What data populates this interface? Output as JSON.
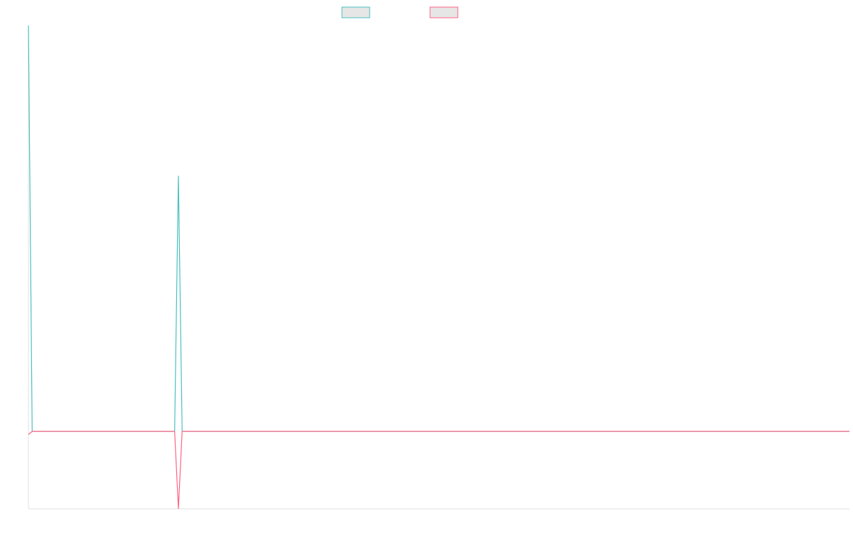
{
  "chart_data": {
    "type": "line",
    "ylim": [
      -1,
      5.24
    ],
    "series": [
      {
        "color": "#4bc0c0",
        "values": [
          5.24,
          0,
          0,
          0,
          0,
          0,
          0,
          0,
          0,
          0,
          0,
          0,
          0,
          0,
          0,
          0,
          0,
          0,
          0,
          0,
          0,
          0,
          0,
          0,
          0,
          0,
          0,
          0,
          0,
          0,
          0,
          0,
          0,
          0,
          0,
          0,
          0,
          0,
          0,
          0,
          3.3,
          0,
          0,
          0,
          0,
          0,
          0,
          0,
          0,
          0,
          0,
          0,
          0,
          0,
          0,
          0,
          0,
          0,
          0,
          0,
          0,
          0,
          0,
          0,
          0,
          0,
          0,
          0,
          0,
          0,
          0,
          0,
          0,
          0,
          0,
          0,
          0,
          0,
          0,
          0,
          0,
          0,
          0,
          0,
          0,
          0,
          0,
          0,
          0,
          0,
          0,
          0,
          0,
          0,
          0,
          0,
          0,
          0,
          0,
          0,
          0,
          0,
          0,
          0,
          0,
          0,
          0,
          0,
          0,
          0,
          0,
          0,
          0,
          0,
          0,
          0,
          0,
          0,
          0,
          0,
          0,
          0,
          0,
          0,
          0,
          0,
          0,
          0,
          0,
          0,
          0,
          0,
          0,
          0,
          0,
          0,
          0,
          0,
          0,
          0,
          0,
          0,
          0,
          0,
          0,
          0,
          0,
          0,
          0,
          0,
          0,
          0,
          0,
          0,
          0,
          0,
          0,
          0,
          0,
          0,
          0,
          0,
          0,
          0,
          0,
          0,
          0,
          0,
          0,
          0,
          0,
          0,
          0,
          0,
          0,
          0,
          0,
          0,
          0,
          0,
          0,
          0,
          0,
          0,
          0,
          0,
          0,
          0,
          0,
          0,
          0,
          0,
          0,
          0,
          0,
          0,
          0,
          0,
          0,
          0,
          0,
          0,
          0,
          0,
          0,
          0,
          0,
          0,
          0,
          0,
          0,
          0,
          0,
          0,
          0,
          0,
          0,
          0,
          0,
          0
        ]
      },
      {
        "color": "#ff6384",
        "values": [
          -0.04,
          0,
          0,
          0,
          0,
          0,
          0,
          0,
          0,
          0,
          0,
          0,
          0,
          0,
          0,
          0,
          0,
          0,
          0,
          0,
          0,
          0,
          0,
          0,
          0,
          0,
          0,
          0,
          0,
          0,
          0,
          0,
          0,
          0,
          0,
          0,
          0,
          0,
          0,
          0,
          -1,
          0,
          0,
          0,
          0,
          0,
          0,
          0,
          0,
          0,
          0,
          0,
          0,
          0,
          0,
          0,
          0,
          0,
          0,
          0,
          0,
          0,
          0,
          0,
          0,
          0,
          0,
          0,
          0,
          0,
          0,
          0,
          0,
          0,
          0,
          0,
          0,
          0,
          0,
          0,
          0,
          0,
          0,
          0,
          0,
          0,
          0,
          0,
          0,
          0,
          0,
          0,
          0,
          0,
          0,
          0,
          0,
          0,
          0,
          0,
          0,
          0,
          0,
          0,
          0,
          0,
          0,
          0,
          0,
          0,
          0,
          0,
          0,
          0,
          0,
          0,
          0,
          0,
          0,
          0,
          0,
          0,
          0,
          0,
          0,
          0,
          0,
          0,
          0,
          0,
          0,
          0,
          0,
          0,
          0,
          0,
          0,
          0,
          0,
          0,
          0,
          0,
          0,
          0,
          0,
          0,
          0,
          0,
          0,
          0,
          0,
          0,
          0,
          0,
          0,
          0,
          0,
          0,
          0,
          0,
          0,
          0,
          0,
          0,
          0,
          0,
          0,
          0,
          0,
          0,
          0,
          0,
          0,
          0,
          0,
          0,
          0,
          0,
          0,
          0,
          0,
          0,
          0,
          0,
          0,
          0,
          0,
          0,
          0,
          0,
          0,
          0,
          0,
          0,
          0,
          0,
          0,
          0,
          0,
          0,
          0,
          0,
          0,
          0,
          0,
          0,
          0,
          0,
          0,
          0,
          0,
          0,
          0,
          0,
          0,
          0,
          0,
          0,
          0,
          0
        ]
      }
    ]
  }
}
